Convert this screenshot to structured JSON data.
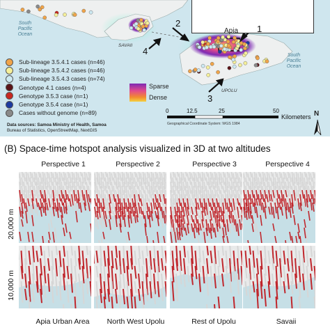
{
  "map": {
    "ocean_left": "South\nPacific\nOcean",
    "ocean_right": "South\nPacific\nOcean",
    "savaii_label": "SAVAII",
    "upolu_label": "UPOLU",
    "apia_label": "Apia",
    "arrow_numbers": [
      "1",
      "2",
      "3",
      "4"
    ],
    "legend": [
      {
        "label": "Sub-lineage 3.5.4.1 cases (n=46)",
        "color": "#f0a44a"
      },
      {
        "label": "Sub-lineage 3.5.4.2 cases (n=46)",
        "color": "#f5ef9a"
      },
      {
        "label": "Sub-lineage 3.5.4.3 cases (n=74)",
        "color": "#cde9f2"
      },
      {
        "label": "Genotype 4.1 cases (n=4)",
        "color": "#5a1418"
      },
      {
        "label": "Genotype 3.5.3 case (n=1)",
        "color": "#c8261f"
      },
      {
        "label": "Genotype 3.5.4 case (n=1)",
        "color": "#1c3aa0"
      },
      {
        "label": "Cases without genome (n=89)",
        "color": "#8a8a8a"
      }
    ],
    "density_legend": {
      "top": "Sparse",
      "bottom": "Dense"
    },
    "sources": [
      "Data sources: Samoa Ministry of Health, Samoa",
      "Bureau of Statistics, OpenStreetMap, NextGIS"
    ],
    "scale_ticks": [
      "0",
      "12.5",
      "25",
      "50"
    ],
    "scale_unit": "Kilometers",
    "gcs_note": "Geographical Coordinate System: WGS 1984",
    "north_label": "N"
  },
  "section_b": {
    "title": "(B) Space-time hotspot analysis visualized in 3D at two altitudes",
    "perspectives": [
      "Perspective 1",
      "Perspective 2",
      "Perspective 3",
      "Perspective 4"
    ],
    "altitudes": [
      "20,000 m",
      "10,000 m"
    ],
    "regions": [
      "Apia Urban Area",
      "North West Upolu",
      "Rest of Upolu",
      "Savaii"
    ]
  },
  "colors": {
    "hot": "#c0272d",
    "cold": "#d6d6d6",
    "land": "#eef0f0",
    "water": "#cfe6ee"
  }
}
